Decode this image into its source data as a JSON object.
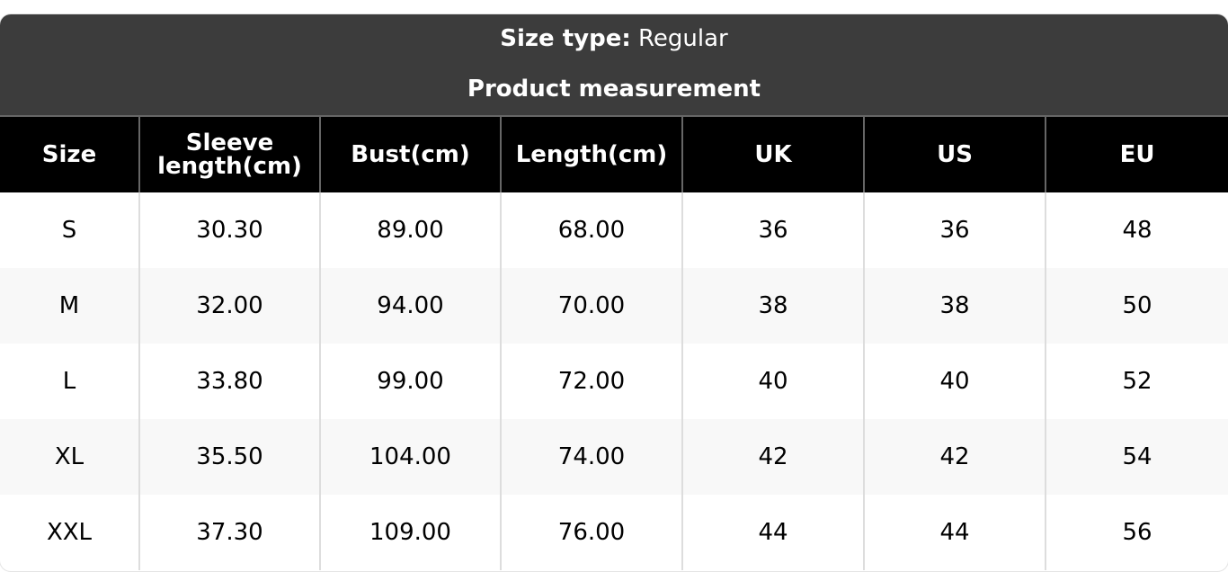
{
  "header": {
    "size_type_label": "Size type:",
    "size_type_value": "Regular",
    "subtitle": "Product measurement"
  },
  "columns": [
    "Size",
    "Sleeve length(cm)",
    "Bust(cm)",
    "Length(cm)",
    "UK",
    "US",
    "EU"
  ],
  "rows": [
    [
      "S",
      "30.30",
      "89.00",
      "68.00",
      "36",
      "36",
      "48"
    ],
    [
      "M",
      "32.00",
      "94.00",
      "70.00",
      "38",
      "38",
      "50"
    ],
    [
      "L",
      "33.80",
      "99.00",
      "72.00",
      "40",
      "40",
      "52"
    ],
    [
      "XL",
      "35.50",
      "104.00",
      "74.00",
      "42",
      "42",
      "54"
    ],
    [
      "XXL",
      "37.30",
      "109.00",
      "76.00",
      "44",
      "44",
      "56"
    ]
  ]
}
